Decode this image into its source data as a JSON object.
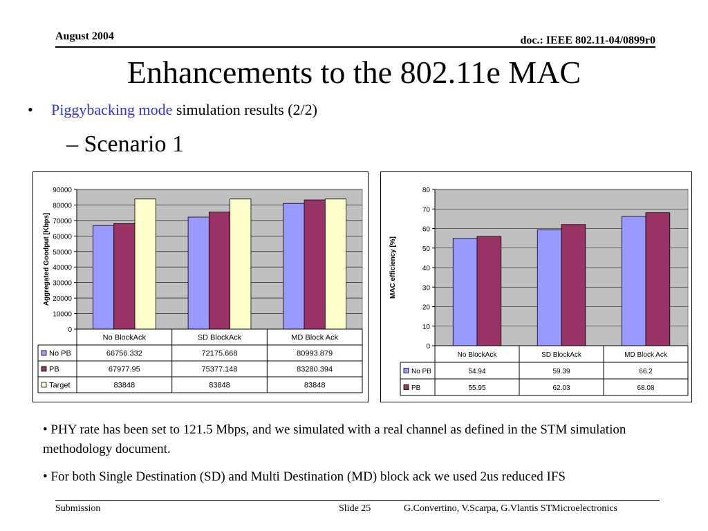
{
  "header": {
    "date": "August 2004",
    "doc": "doc.: IEEE 802.11-04/0899r0"
  },
  "slide": {
    "title": "Enhancements to the 802.11e MAC",
    "bullet": {
      "symbol": "•",
      "highlight": "Piggybacking mode",
      "rest": " simulation results (2/2)"
    },
    "subbullet": "– Scenario 1"
  },
  "chart_data": [
    {
      "type": "bar",
      "ylabel": "Aggregated Goodput [Kbps]",
      "ylim": [
        0,
        90000
      ],
      "yticks": [
        "0",
        "10000",
        "20000",
        "30000",
        "40000",
        "50000",
        "60000",
        "70000",
        "80000",
        "90000"
      ],
      "grid": true,
      "categories": [
        "No BlockAck",
        "SD BlockAck",
        "MD Block Ack"
      ],
      "series": [
        {
          "name": "No PB",
          "color": "#9999ff",
          "values": [
            66756.332,
            72175.668,
            80993.879
          ],
          "labels": [
            "66756.332",
            "72175.668",
            "80993.879"
          ]
        },
        {
          "name": "PB",
          "color": "#993366",
          "values": [
            67977.95,
            75377.148,
            83280.394
          ],
          "labels": [
            "67977.95",
            "75377.148",
            "83280.394"
          ]
        },
        {
          "name": "Target",
          "color": "#ffffcc",
          "values": [
            83848,
            83848,
            83848
          ],
          "labels": [
            "83848",
            "83848",
            "83848"
          ]
        }
      ],
      "legend": "data-table"
    },
    {
      "type": "bar",
      "ylabel": "MAC efficiency [%]",
      "ylim": [
        0,
        80
      ],
      "yticks": [
        "0",
        "10",
        "20",
        "30",
        "40",
        "50",
        "60",
        "70",
        "80"
      ],
      "grid": true,
      "categories": [
        "No BlockAck",
        "SD BlockAck",
        "MD Block Ack"
      ],
      "series": [
        {
          "name": "No PB",
          "color": "#9999ff",
          "values": [
            54.94,
            59.39,
            66.2
          ],
          "labels": [
            "54.94",
            "59.39",
            "66.2"
          ]
        },
        {
          "name": "PB",
          "color": "#993366",
          "values": [
            55.95,
            62.03,
            68.08
          ],
          "labels": [
            "55.95",
            "62.03",
            "68.08"
          ]
        }
      ],
      "legend": "data-table"
    }
  ],
  "notes": [
    "• PHY rate has been set to 121.5 Mbps, and we simulated with a real channel as defined in the STM simulation methodology document.",
    "• For both Single Destination (SD) and Multi Destination (MD) block ack we used 2us reduced IFS"
  ],
  "footer": {
    "left": "Submission",
    "slide": "Slide 25",
    "authors": "G.Convertino, V.Scarpa, G.Vlantis  STMicroelectronics"
  }
}
